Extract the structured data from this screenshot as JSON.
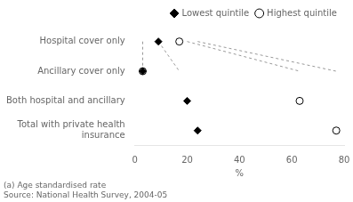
{
  "chart_data": {
    "type": "dot",
    "categories": [
      "Hospital cover only",
      "Ancillary cover only",
      "Both hospital and ancillary",
      "Total with private health\ninsurance"
    ],
    "series": [
      {
        "name": "Lowest quintile",
        "color": "#000000",
        "marker": "diamond",
        "values": [
          9,
          3,
          20,
          24
        ]
      },
      {
        "name": "Highest quintile",
        "color": "#000000",
        "marker": "circle",
        "values": [
          17,
          3,
          63,
          77
        ]
      }
    ],
    "xlabel": "%",
    "xlim": [
      0,
      80
    ],
    "xticks": [
      0,
      20,
      40,
      60,
      80
    ],
    "annotations": [
      "(a) Age standardised rate",
      "Source: National Health Survey, 2004-05"
    ],
    "line_style": "dashed",
    "grid": false,
    "legend": "upper right"
  }
}
